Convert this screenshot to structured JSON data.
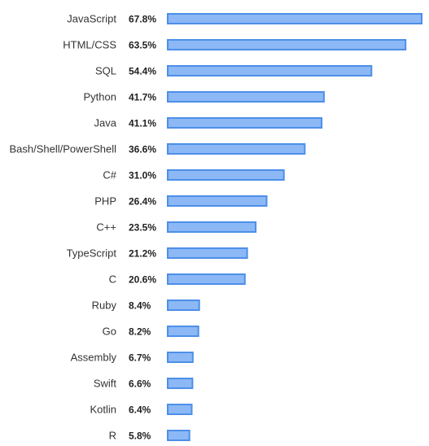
{
  "chart_data": {
    "type": "bar",
    "orientation": "horizontal",
    "categories": [
      "JavaScript",
      "HTML/CSS",
      "SQL",
      "Python",
      "Java",
      "Bash/Shell/PowerShell",
      "C#",
      "PHP",
      "C++",
      "TypeScript",
      "C",
      "Ruby",
      "Go",
      "Assembly",
      "Swift",
      "Kotlin",
      "R"
    ],
    "values": [
      67.8,
      63.5,
      54.4,
      41.7,
      41.1,
      36.6,
      31.0,
      26.4,
      23.5,
      21.2,
      20.6,
      8.4,
      8.2,
      6.7,
      6.6,
      6.4,
      5.8
    ],
    "value_labels": [
      "67.8%",
      "63.5%",
      "54.4%",
      "41.7%",
      "41.1%",
      "36.6%",
      "31.0%",
      "26.4%",
      "23.5%",
      "21.2%",
      "20.6%",
      "8.4%",
      "8.2%",
      "6.7%",
      "6.6%",
      "6.4%",
      "5.8%"
    ],
    "xlim": [
      0,
      67.8
    ],
    "grid": false,
    "colors": {
      "bar_fill": "#8cb8f5",
      "bar_stroke": "#4d8fe8",
      "label_text": "#333333",
      "value_text": "#222222"
    }
  }
}
